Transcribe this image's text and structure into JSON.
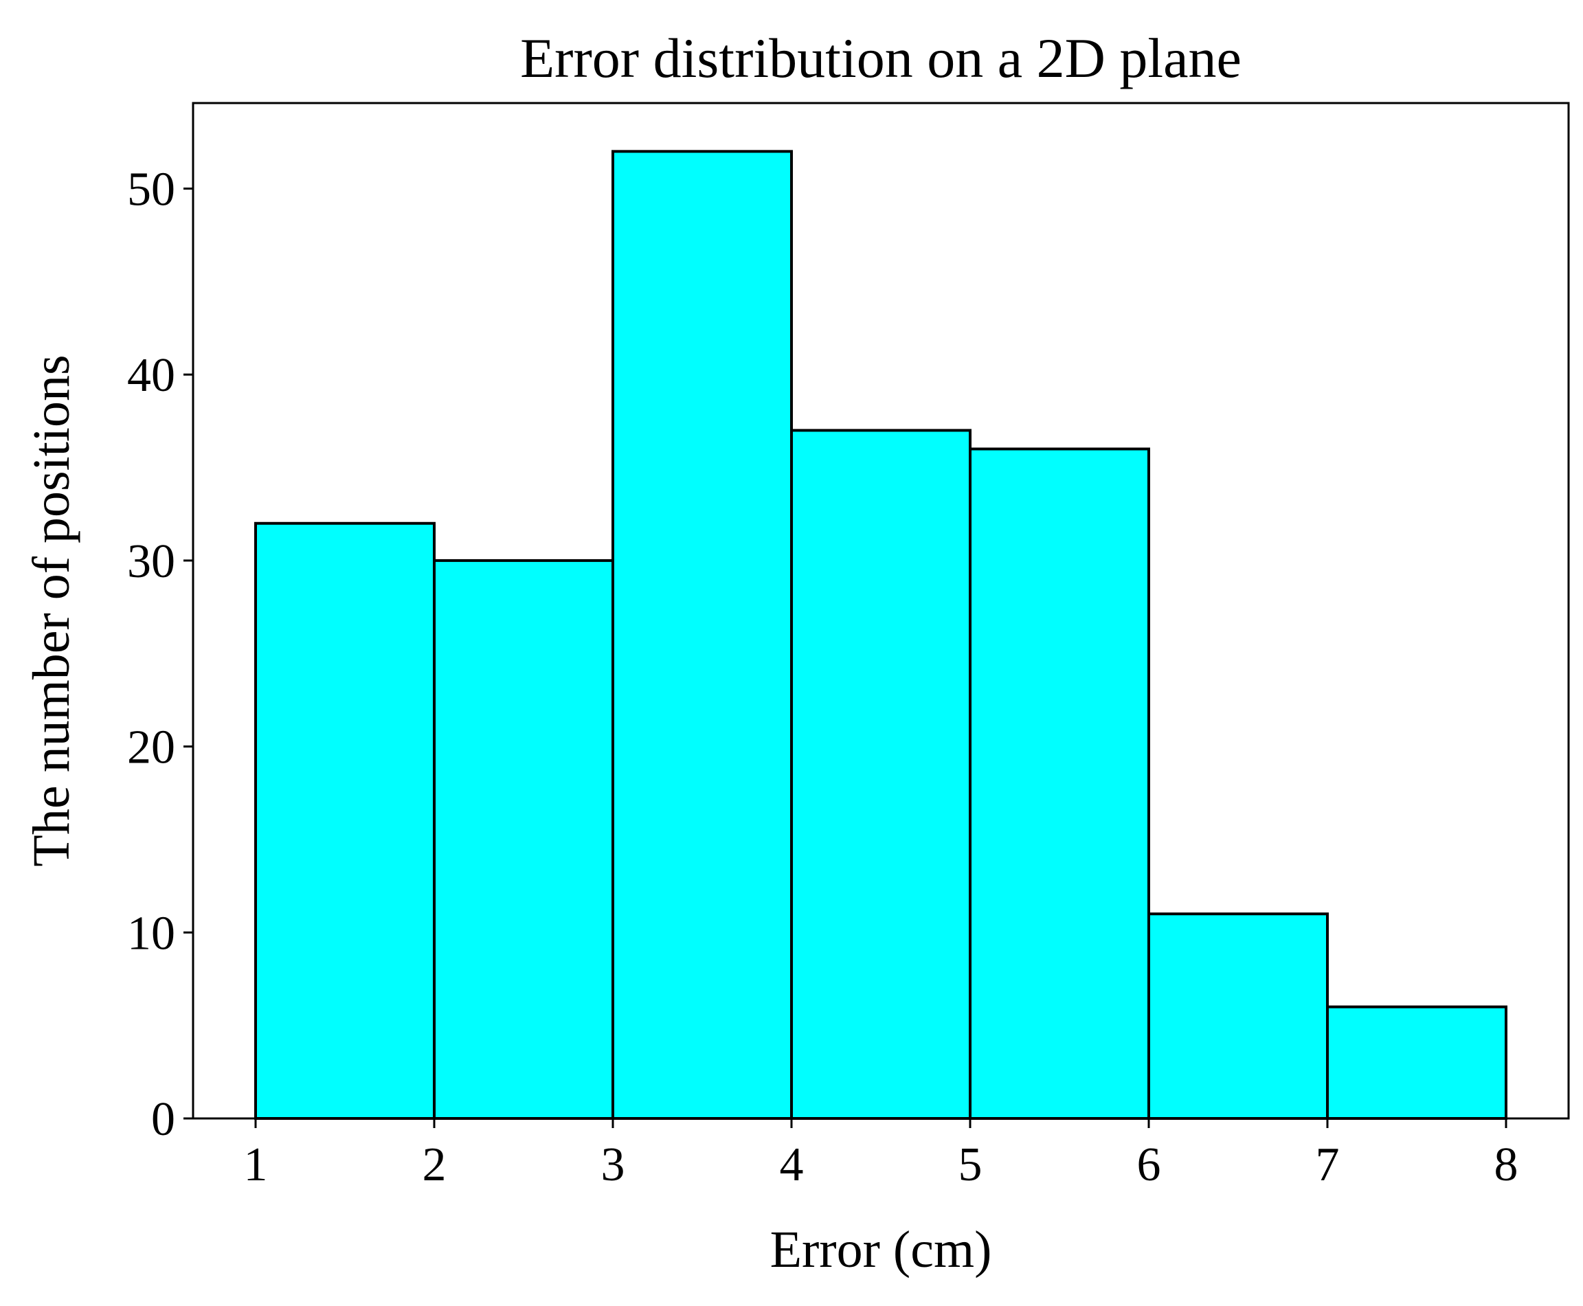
{
  "chart_data": {
    "type": "bar",
    "subtype": "histogram",
    "title": "Error distribution on a 2D plane",
    "xlabel": "Error (cm)",
    "ylabel": "The number of positions",
    "bin_edges": [
      1,
      2,
      3,
      4,
      5,
      6,
      7,
      8
    ],
    "values": [
      32,
      30,
      52,
      37,
      36,
      11,
      6
    ],
    "xlim": [
      0.65,
      8.35
    ],
    "ylim": [
      0,
      54.6
    ],
    "x_ticks": [
      1,
      2,
      3,
      4,
      5,
      6,
      7,
      8
    ],
    "y_ticks": [
      0,
      10,
      20,
      30,
      40,
      50
    ],
    "grid": false,
    "legend": null,
    "bar_fill_color": "#00ffff",
    "bar_edge_color": "#000000"
  }
}
